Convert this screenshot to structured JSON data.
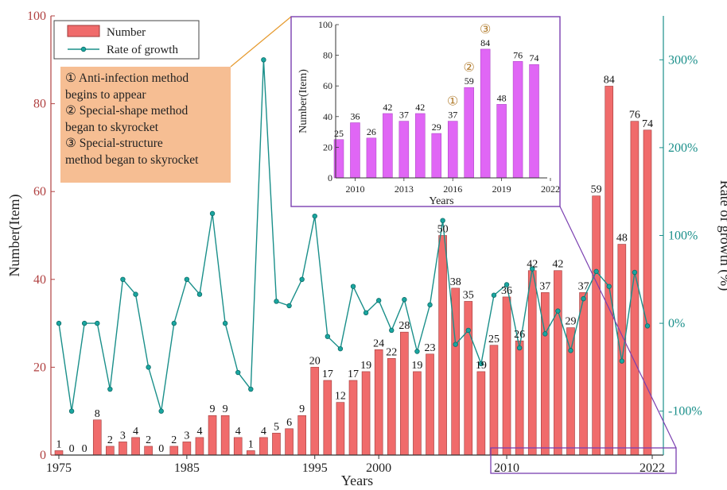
{
  "colors": {
    "bar": "#f06b6b",
    "bar_stroke": "#9e3a3a",
    "line": "#1a8f8a",
    "point": "#1aa6a0",
    "left_axis": "#b04040",
    "right_axis": "#1a8f8a",
    "inset_bar": "#e066f5",
    "inset_frame": "#7a3fb0",
    "connector": "#e69a2e",
    "annotation_bg": "#f6be93"
  },
  "legend": {
    "bar_label": "Number",
    "line_label": "Rate of growth"
  },
  "annotation": {
    "lines": [
      "① Anti-infection method",
      "begins to appear",
      "② Special-shape method",
      "began to skyrocket",
      "③ Special-structure",
      "method began to skyrocket"
    ]
  },
  "chart_data": [
    {
      "type": "bar+line",
      "xlabel": "Years",
      "ylabel": "Number(Item)",
      "y2label": "Rate of growth (%)",
      "ylim": [
        0,
        100
      ],
      "y2lim": [
        -150,
        350
      ],
      "yticks": [
        "0",
        "20",
        "40",
        "60",
        "80",
        "100"
      ],
      "y2ticks": [
        "-100%",
        "0%",
        "100%",
        "200%",
        "300%"
      ],
      "xticks": [
        "1975",
        "1985",
        "1995",
        "2000",
        "2010",
        "2022"
      ],
      "years": [
        1975,
        1976,
        1977,
        1978,
        1979,
        1980,
        1981,
        1982,
        1983,
        1984,
        1985,
        1986,
        1987,
        1988,
        1989,
        1990,
        1991,
        1992,
        1993,
        1994,
        1995,
        1996,
        1997,
        1998,
        1999,
        2000,
        2001,
        2002,
        2003,
        2004,
        2005,
        2006,
        2007,
        2008,
        2009,
        2010,
        2011,
        2012,
        2013,
        2014,
        2015,
        2016,
        2017,
        2018,
        2019,
        2020,
        2021
      ],
      "series": [
        {
          "name": "Number",
          "type": "bar",
          "values": [
            1,
            0,
            0,
            8,
            2,
            3,
            4,
            2,
            0,
            2,
            3,
            4,
            9,
            9,
            4,
            1,
            4,
            5,
            6,
            9,
            20,
            17,
            12,
            17,
            19,
            24,
            22,
            28,
            19,
            23,
            50,
            38,
            35,
            19,
            25,
            36,
            26,
            42,
            37,
            42,
            29,
            37,
            59,
            84,
            48,
            76,
            74
          ]
        },
        {
          "name": "Rate of growth",
          "type": "line",
          "unit": "%",
          "values": [
            0,
            -100,
            0,
            0,
            -75,
            50,
            33,
            -50,
            -100,
            0,
            50,
            33,
            125,
            0,
            -56,
            -75,
            300,
            25,
            20,
            50,
            122,
            -15,
            -29,
            42,
            12,
            26,
            -8,
            27,
            -32,
            21,
            117,
            -24,
            -8,
            -46,
            32,
            44,
            -28,
            62,
            -12,
            14,
            -31,
            28,
            59,
            42,
            -43,
            58,
            -3
          ]
        }
      ]
    },
    {
      "type": "bar",
      "xlabel": "Years",
      "ylabel": "Number(Item)",
      "ylim": [
        0,
        100
      ],
      "xlim": [
        2009,
        2022
      ],
      "yticks": [
        "0",
        "20",
        "40",
        "60",
        "80",
        "100"
      ],
      "xticks": [
        "2010",
        "2013",
        "2016",
        "2019",
        "2022"
      ],
      "categories": [
        2009,
        2010,
        2011,
        2012,
        2013,
        2014,
        2015,
        2016,
        2017,
        2018,
        2019,
        2020,
        2021
      ],
      "values": [
        25,
        36,
        26,
        42,
        37,
        42,
        29,
        37,
        59,
        84,
        48,
        76,
        74
      ],
      "markers": [
        {
          "year": 2016,
          "label": "①"
        },
        {
          "year": 2017,
          "label": "②"
        },
        {
          "year": 2018,
          "label": "③"
        }
      ]
    }
  ]
}
